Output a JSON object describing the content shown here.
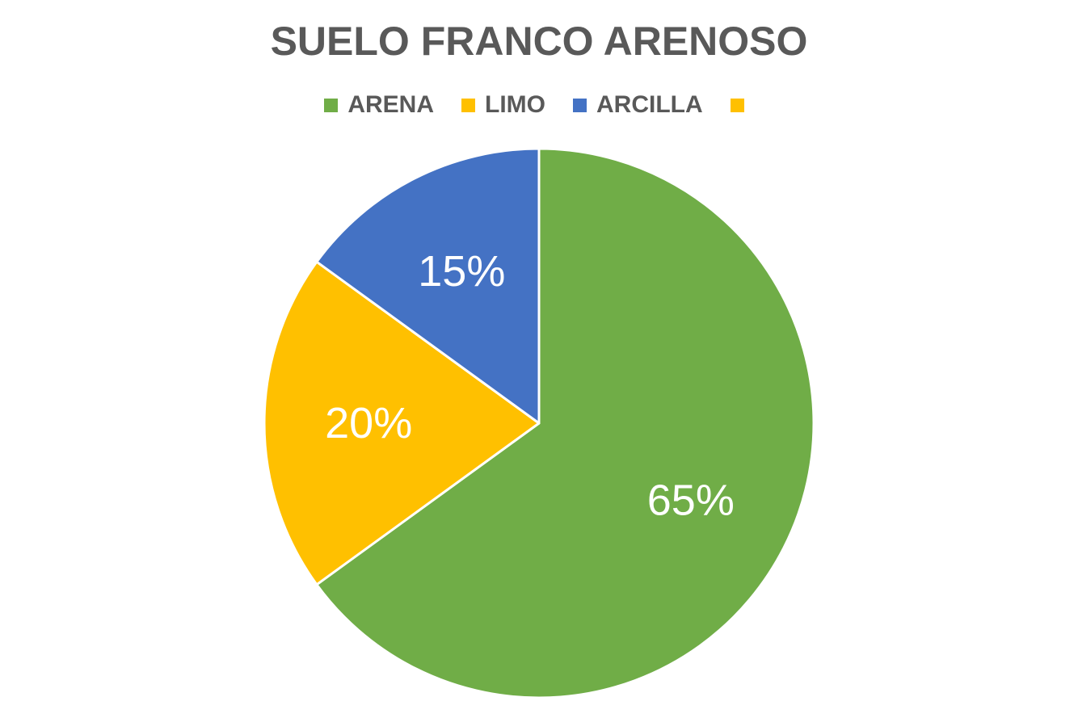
{
  "chart_data": {
    "type": "pie",
    "title": "SUELO FRANCO ARENOSO",
    "legend_position": "top",
    "slices": [
      {
        "name": "ARENA",
        "value": 65,
        "label": "65%",
        "color": "#70AD47"
      },
      {
        "name": "LIMO",
        "value": 20,
        "label": "20%",
        "color": "#FFC000"
      },
      {
        "name": "ARCILLA",
        "value": 15,
        "label": "15%",
        "color": "#4472C4"
      }
    ],
    "legend": [
      {
        "label": "ARENA",
        "color": "#70AD47"
      },
      {
        "label": "LIMO",
        "color": "#FFC000"
      },
      {
        "label": "ARCILLA",
        "color": "#4472C4"
      },
      {
        "label": "",
        "color": "#FFC000"
      }
    ]
  }
}
